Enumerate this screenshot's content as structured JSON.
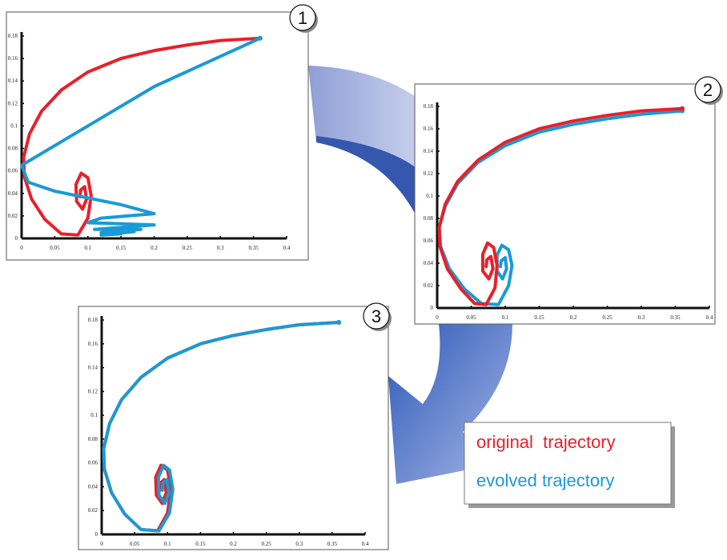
{
  "chart_data": [
    {
      "type": "line",
      "label": "1",
      "xlim": [
        0,
        0.4
      ],
      "ylim": [
        0,
        0.18
      ],
      "xticks": [
        0,
        0.05,
        0.1,
        0.15,
        0.2,
        0.25,
        0.3,
        0.35,
        0.4
      ],
      "yticks": [
        0,
        0.02,
        0.04,
        0.06,
        0.08,
        0.1,
        0.12,
        0.14,
        0.16,
        0.18
      ],
      "series": [
        {
          "color": "#e8202a",
          "x": [
            0.36,
            0.3,
            0.25,
            0.2,
            0.15,
            0.1,
            0.06,
            0.03,
            0.012,
            0.003,
            0.004,
            0.015,
            0.035,
            0.06,
            0.085,
            0.1,
            0.105,
            0.1,
            0.09,
            0.082,
            0.083,
            0.092,
            0.098,
            0.095,
            0.089,
            0.088
          ],
          "values": [
            0.178,
            0.176,
            0.172,
            0.167,
            0.16,
            0.148,
            0.132,
            0.113,
            0.093,
            0.072,
            0.055,
            0.035,
            0.017,
            0.004,
            0.003,
            0.018,
            0.038,
            0.054,
            0.058,
            0.048,
            0.033,
            0.026,
            0.035,
            0.046,
            0.043,
            0.037
          ]
        },
        {
          "color": "#1a9ad6",
          "x": [
            0.36,
            0.2,
            0.1,
            0.0,
            0.01,
            0.05,
            0.1,
            0.15,
            0.2,
            0.12,
            0.1,
            0.2,
            0.11,
            0.18,
            0.12,
            0.17,
            0.12,
            0.15
          ],
          "values": [
            0.178,
            0.135,
            0.1,
            0.065,
            0.05,
            0.042,
            0.036,
            0.03,
            0.022,
            0.018,
            0.014,
            0.012,
            0.008,
            0.008,
            0.005,
            0.006,
            0.003,
            0.004
          ]
        }
      ]
    },
    {
      "type": "line",
      "label": "2",
      "xlim": [
        0,
        0.4
      ],
      "ylim": [
        0,
        0.18
      ],
      "xticks": [
        0,
        0.05,
        0.1,
        0.15,
        0.2,
        0.25,
        0.3,
        0.35,
        0.4
      ],
      "yticks": [
        0,
        0.02,
        0.04,
        0.06,
        0.08,
        0.1,
        0.12,
        0.14,
        0.16,
        0.18
      ],
      "series": [
        {
          "color": "#1a9ad6",
          "x": [
            0.36,
            0.3,
            0.25,
            0.2,
            0.15,
            0.1,
            0.06,
            0.03,
            0.012,
            0.003,
            0.005,
            0.018,
            0.04,
            0.065,
            0.09,
            0.105,
            0.11,
            0.105,
            0.095,
            0.088,
            0.088,
            0.096,
            0.102,
            0.1,
            0.094,
            0.093
          ],
          "values": [
            0.176,
            0.173,
            0.169,
            0.164,
            0.157,
            0.145,
            0.13,
            0.111,
            0.091,
            0.072,
            0.055,
            0.035,
            0.017,
            0.004,
            0.003,
            0.02,
            0.038,
            0.052,
            0.056,
            0.047,
            0.033,
            0.026,
            0.035,
            0.045,
            0.042,
            0.037
          ]
        },
        {
          "color": "#e8202a",
          "x": [
            0.36,
            0.3,
            0.25,
            0.2,
            0.15,
            0.1,
            0.06,
            0.03,
            0.012,
            0.003,
            0.004,
            0.015,
            0.035,
            0.055,
            0.072,
            0.085,
            0.088,
            0.083,
            0.074,
            0.067,
            0.067,
            0.076,
            0.082,
            0.079,
            0.073,
            0.072
          ],
          "values": [
            0.178,
            0.176,
            0.172,
            0.167,
            0.16,
            0.148,
            0.132,
            0.113,
            0.093,
            0.072,
            0.055,
            0.035,
            0.017,
            0.004,
            0.003,
            0.018,
            0.038,
            0.054,
            0.058,
            0.048,
            0.033,
            0.026,
            0.035,
            0.046,
            0.043,
            0.037
          ]
        }
      ]
    },
    {
      "type": "line",
      "label": "3",
      "xlim": [
        0,
        0.4
      ],
      "ylim": [
        0,
        0.18
      ],
      "xticks": [
        0,
        0.05,
        0.1,
        0.15,
        0.2,
        0.25,
        0.3,
        0.35,
        0.4
      ],
      "yticks": [
        0,
        0.02,
        0.04,
        0.06,
        0.08,
        0.1,
        0.12,
        0.14,
        0.16,
        0.18
      ],
      "series": [
        {
          "name": "original  trajectory",
          "color": "#e8202a",
          "x": [
            0.36,
            0.3,
            0.25,
            0.2,
            0.15,
            0.1,
            0.06,
            0.03,
            0.012,
            0.003,
            0.004,
            0.015,
            0.035,
            0.06,
            0.085,
            0.1,
            0.105,
            0.1,
            0.09,
            0.082,
            0.083,
            0.092,
            0.098,
            0.095,
            0.089,
            0.088
          ],
          "values": [
            0.178,
            0.176,
            0.172,
            0.167,
            0.16,
            0.148,
            0.132,
            0.113,
            0.093,
            0.072,
            0.055,
            0.035,
            0.017,
            0.004,
            0.003,
            0.018,
            0.038,
            0.054,
            0.058,
            0.048,
            0.033,
            0.026,
            0.035,
            0.046,
            0.043,
            0.037
          ]
        },
        {
          "name": "evolved trajectory",
          "color": "#1a9ad6",
          "x": [
            0.36,
            0.3,
            0.25,
            0.2,
            0.15,
            0.1,
            0.06,
            0.03,
            0.012,
            0.003,
            0.004,
            0.015,
            0.035,
            0.06,
            0.087,
            0.103,
            0.108,
            0.103,
            0.094,
            0.086,
            0.087,
            0.096,
            0.102,
            0.099,
            0.093,
            0.092
          ],
          "values": [
            0.178,
            0.176,
            0.172,
            0.167,
            0.16,
            0.148,
            0.132,
            0.113,
            0.093,
            0.072,
            0.055,
            0.035,
            0.017,
            0.004,
            0.003,
            0.018,
            0.038,
            0.054,
            0.058,
            0.048,
            0.033,
            0.026,
            0.035,
            0.046,
            0.043,
            0.037
          ]
        }
      ]
    }
  ]
}
